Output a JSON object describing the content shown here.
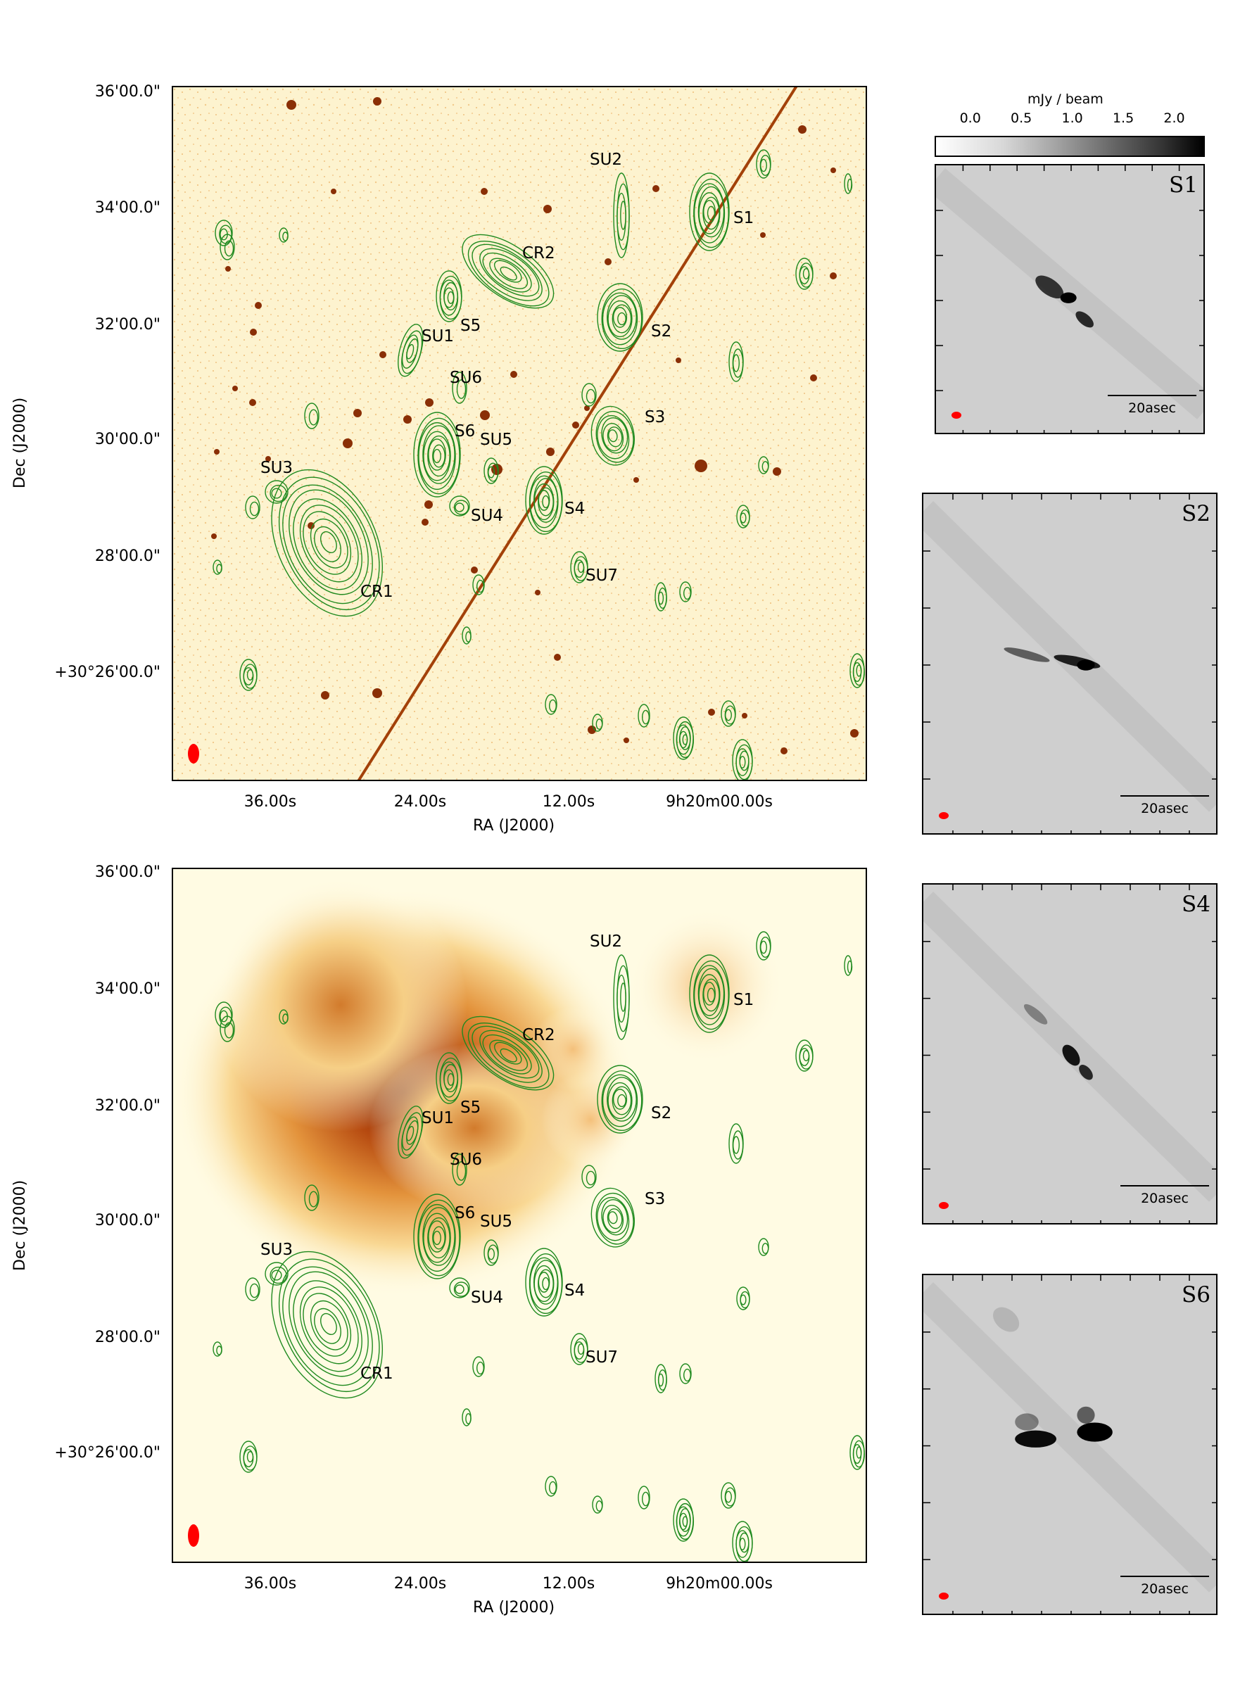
{
  "top_panel": {
    "y_ticks": [
      "36'00.0\"",
      "34'00.0\"",
      "32'00.0\"",
      "30'00.0\"",
      "28'00.0\"",
      "+30°26'00.0\""
    ],
    "x_ticks": [
      "36.00s",
      "24.00s",
      "12.00s",
      "9h20m00.00s"
    ],
    "xlabel": "RA (J2000)",
    "ylabel": "Dec (J2000)",
    "sources": [
      "SU2",
      "S1",
      "CR2",
      "S5",
      "SU1",
      "S2",
      "SU6",
      "S6",
      "SU5",
      "S3",
      "SU3",
      "S4",
      "SU4",
      "SU7",
      "CR1"
    ]
  },
  "bottom_panel": {
    "y_ticks": [
      "36'00.0\"",
      "34'00.0\"",
      "32'00.0\"",
      "30'00.0\"",
      "28'00.0\"",
      "+30°26'00.0\""
    ],
    "x_ticks": [
      "36.00s",
      "24.00s",
      "12.00s",
      "9h20m00.00s"
    ],
    "xlabel": "RA (J2000)",
    "ylabel": "Dec (J2000)",
    "sources": [
      "SU2",
      "S1",
      "CR2",
      "S5",
      "SU1",
      "S2",
      "SU6",
      "S6",
      "SU5",
      "S3",
      "SU3",
      "S4",
      "SU4",
      "SU7",
      "CR1"
    ]
  },
  "colorbar": {
    "label": "mJy / beam",
    "ticks": [
      "0.0",
      "0.5",
      "1.0",
      "1.5",
      "2.0"
    ],
    "range": [
      -0.35,
      2.3
    ]
  },
  "insets": [
    {
      "title": "S1",
      "scalebar": "20asec"
    },
    {
      "title": "S2",
      "scalebar": "20asec"
    },
    {
      "title": "S4",
      "scalebar": "20asec"
    },
    {
      "title": "S6",
      "scalebar": "20asec"
    }
  ],
  "colors": {
    "contour": "#1f8a1f",
    "beam": "#ff0000",
    "optical_bg": "#fdf3cf",
    "optical_spot": "#8a2f06",
    "xray_peak": "#7a1f00"
  }
}
